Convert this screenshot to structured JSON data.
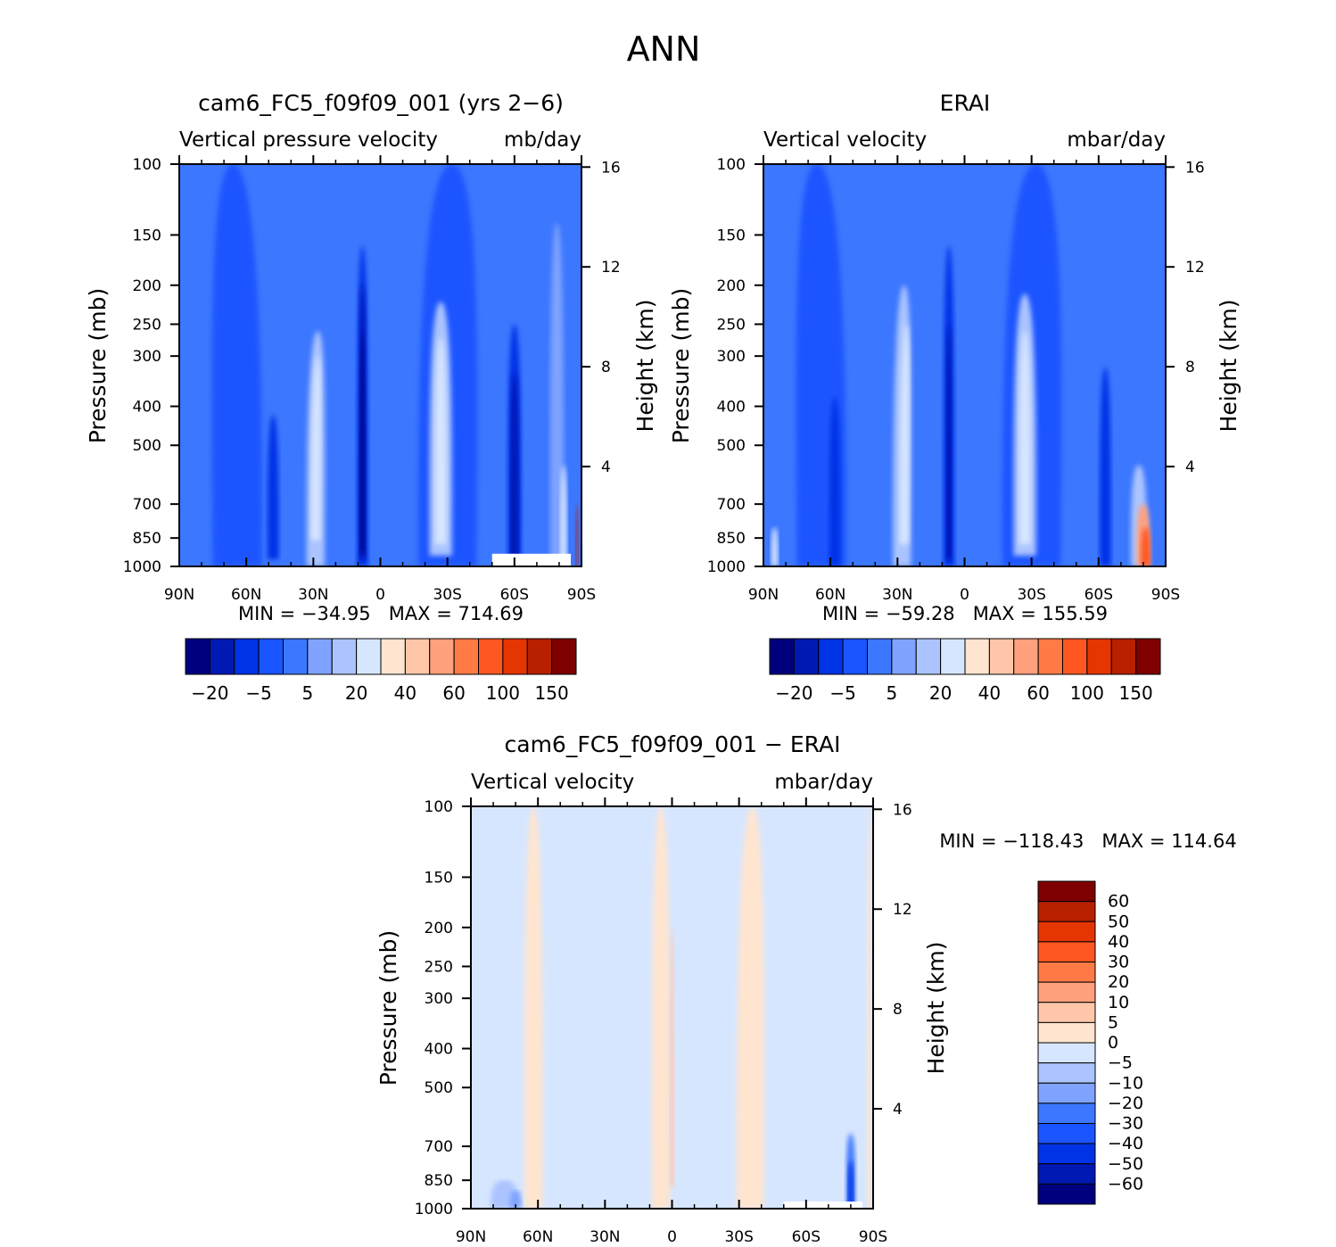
{
  "figure": {
    "title": "ANN"
  },
  "colors": {
    "main_scale": [
      "#00007f",
      "#0019b2",
      "#0033e6",
      "#1a55ff",
      "#3c77ff",
      "#7fa3ff",
      "#abc4ff",
      "#d7e6ff",
      "#ffe5cf",
      "#ffc6aa",
      "#ffa17d",
      "#ff7a45",
      "#ff5722",
      "#e53500",
      "#b82000",
      "#7f0000"
    ],
    "diff_scale": [
      "#00007f",
      "#0019b2",
      "#0033e6",
      "#1a55ff",
      "#3c77ff",
      "#7fa3ff",
      "#abc4ff",
      "#d7e6ff",
      "#ffe5cf",
      "#ffc6aa",
      "#ffa17d",
      "#ff7a45",
      "#ff5722",
      "#e53500",
      "#b82000",
      "#7f0000"
    ]
  },
  "chart_data": [
    {
      "type": "heatmap",
      "title": "cam6_FC5_f09f09_001 (yrs 2−6)",
      "subtitle_left": "Vertical pressure velocity",
      "subtitle_right": "mb/day",
      "ylabel": "Pressure (mb)",
      "ylabel_right": "Height (km)",
      "x_ticks": [
        "90N",
        "60N",
        "30N",
        "0",
        "30S",
        "60S",
        "90S"
      ],
      "y_ticks": [
        "100",
        "150",
        "200",
        "250",
        "300",
        "400",
        "500",
        "700",
        "850",
        "1000"
      ],
      "y_ticks_right": [
        "16",
        "12",
        "8",
        "4"
      ],
      "stats": "MIN = −34.95   MAX = 714.69",
      "colorbar_labels": [
        "−20",
        "−5",
        "5",
        "20",
        "40",
        "60",
        "100",
        "150"
      ],
      "fields": {
        "background": 4,
        "features": [
          {
            "lat": 64,
            "p0": 100,
            "p1": 1000,
            "w": 22,
            "level": 3,
            "skew": -2
          },
          {
            "lat": 48,
            "p0": 420,
            "p1": 960,
            "w": 5,
            "level": 2,
            "skew": 0
          },
          {
            "lat": 29,
            "p0": 260,
            "p1": 1000,
            "w": 8,
            "level": 6,
            "skew": 1
          },
          {
            "lat": 29,
            "p0": 300,
            "p1": 860,
            "w": 4,
            "level": 7,
            "skew": 1
          },
          {
            "lat": 8,
            "p0": 160,
            "p1": 1000,
            "w": 5,
            "level": 2,
            "skew": 0
          },
          {
            "lat": 8,
            "p0": 200,
            "p1": 960,
            "w": 3,
            "level": 1,
            "skew": 0
          },
          {
            "lat": 8,
            "p0": 260,
            "p1": 920,
            "w": 1.6,
            "level": 0,
            "skew": 0
          },
          {
            "lat": -30,
            "p0": 100,
            "p1": 1000,
            "w": 26,
            "level": 3,
            "skew": 2
          },
          {
            "lat": -27,
            "p0": 220,
            "p1": 940,
            "w": 10,
            "level": 6,
            "skew": 0
          },
          {
            "lat": -27,
            "p0": 270,
            "p1": 880,
            "w": 5,
            "level": 7,
            "skew": 0
          },
          {
            "lat": -60,
            "p0": 250,
            "p1": 1000,
            "w": 6,
            "level": 2,
            "skew": 0
          },
          {
            "lat": -60,
            "p0": 330,
            "p1": 970,
            "w": 3.5,
            "level": 1,
            "skew": 0
          },
          {
            "lat": -79,
            "p0": 140,
            "p1": 1000,
            "w": 6,
            "level": 5,
            "skew": 0
          },
          {
            "lat": -82,
            "p0": 560,
            "p1": 1000,
            "w": 3,
            "level": 7,
            "skew": 0
          },
          {
            "lat": -88,
            "p0": 700,
            "p1": 1000,
            "w": 1.2,
            "level": 14,
            "skew": 0
          }
        ],
        "masked_below_p": 930,
        "mask_lat_from": -50
      }
    },
    {
      "type": "heatmap",
      "title": "ERAI",
      "subtitle_left": "Vertical velocity",
      "subtitle_right": "mbar/day",
      "ylabel": "Pressure (mb)",
      "ylabel_right": "Height (km)",
      "x_ticks": [
        "90N",
        "60N",
        "30N",
        "0",
        "30S",
        "60S",
        "90S"
      ],
      "y_ticks": [
        "100",
        "150",
        "200",
        "250",
        "300",
        "400",
        "500",
        "700",
        "850",
        "1000"
      ],
      "y_ticks_right": [
        "16",
        "12",
        "8",
        "4"
      ],
      "stats": "MIN = −59.28   MAX = 155.59",
      "colorbar_labels": [
        "−20",
        "−5",
        "5",
        "20",
        "40",
        "60",
        "100",
        "150"
      ],
      "fields": {
        "background": 4,
        "features": [
          {
            "lat": 64,
            "p0": 100,
            "p1": 1000,
            "w": 22,
            "level": 3,
            "skew": -2
          },
          {
            "lat": 58,
            "p0": 380,
            "p1": 1000,
            "w": 5,
            "level": 2,
            "skew": 0
          },
          {
            "lat": 28,
            "p0": 200,
            "p1": 1000,
            "w": 8,
            "level": 6,
            "skew": 1
          },
          {
            "lat": 27,
            "p0": 250,
            "p1": 880,
            "w": 4,
            "level": 7,
            "skew": 1
          },
          {
            "lat": 7,
            "p0": 160,
            "p1": 1000,
            "w": 5,
            "level": 2,
            "skew": 0
          },
          {
            "lat": 7,
            "p0": 250,
            "p1": 960,
            "w": 2.5,
            "level": 1,
            "skew": 0
          },
          {
            "lat": -30,
            "p0": 100,
            "p1": 1000,
            "w": 26,
            "level": 3,
            "skew": 2
          },
          {
            "lat": -27,
            "p0": 210,
            "p1": 940,
            "w": 10,
            "level": 6,
            "skew": 0
          },
          {
            "lat": -27,
            "p0": 260,
            "p1": 880,
            "w": 5,
            "level": 7,
            "skew": 0
          },
          {
            "lat": -63,
            "p0": 320,
            "p1": 1000,
            "w": 5,
            "level": 2,
            "skew": 0
          },
          {
            "lat": -78,
            "p0": 560,
            "p1": 1000,
            "w": 7,
            "level": 6,
            "skew": 0
          },
          {
            "lat": -80,
            "p0": 700,
            "p1": 1000,
            "w": 6,
            "level": 10,
            "skew": 0
          },
          {
            "lat": -81,
            "p0": 800,
            "p1": 1000,
            "w": 4,
            "level": 12,
            "skew": 0
          },
          {
            "lat": 85,
            "p0": 800,
            "p1": 1000,
            "w": 3,
            "level": 7,
            "skew": 0
          }
        ]
      }
    },
    {
      "type": "heatmap",
      "title": "cam6_FC5_f09f09_001 − ERAI",
      "subtitle_left": "Vertical velocity",
      "subtitle_right": "mbar/day",
      "ylabel": "Pressure (mb)",
      "ylabel_right": "Height (km)",
      "x_ticks": [
        "90N",
        "60N",
        "30N",
        "0",
        "30S",
        "60S",
        "90S"
      ],
      "y_ticks": [
        "100",
        "150",
        "200",
        "250",
        "300",
        "400",
        "500",
        "700",
        "850",
        "1000"
      ],
      "y_ticks_right": [
        "16",
        "12",
        "8",
        "4"
      ],
      "stats": "MIN = −118.43   MAX = 114.64",
      "colorbar_labels": [
        "60",
        "50",
        "40",
        "30",
        "20",
        "10",
        "5",
        "0",
        "−5",
        "−10",
        "−20",
        "−30",
        "−40",
        "−50",
        "−60"
      ],
      "fields": {
        "background": 7,
        "features": [
          {
            "lat": 62,
            "p0": 100,
            "p1": 1000,
            "w": 8,
            "level": 8,
            "skew": 0
          },
          {
            "lat": 5,
            "p0": 100,
            "p1": 1000,
            "w": 8,
            "level": 8,
            "skew": 0
          },
          {
            "lat": 0,
            "p0": 200,
            "p1": 880,
            "w": 1.8,
            "level": 9,
            "skew": 0
          },
          {
            "lat": -35,
            "p0": 100,
            "p1": 1000,
            "w": 12,
            "level": 8,
            "skew": 1
          },
          {
            "lat": -88,
            "p0": 100,
            "p1": 1000,
            "w": 2,
            "level": 8,
            "skew": 0
          },
          {
            "lat": -80,
            "p0": 650,
            "p1": 1000,
            "w": 4,
            "level": 4,
            "skew": 0
          },
          {
            "lat": -80,
            "p0": 760,
            "p1": 1000,
            "w": 2.5,
            "level": 2,
            "skew": 0
          },
          {
            "lat": 75,
            "p0": 850,
            "p1": 1000,
            "w": 12,
            "level": 6,
            "skew": 0
          },
          {
            "lat": 70,
            "p0": 900,
            "p1": 1000,
            "w": 5,
            "level": 5,
            "skew": 0
          }
        ],
        "masked_below_p": 960,
        "mask_lat_from": -50
      }
    }
  ]
}
